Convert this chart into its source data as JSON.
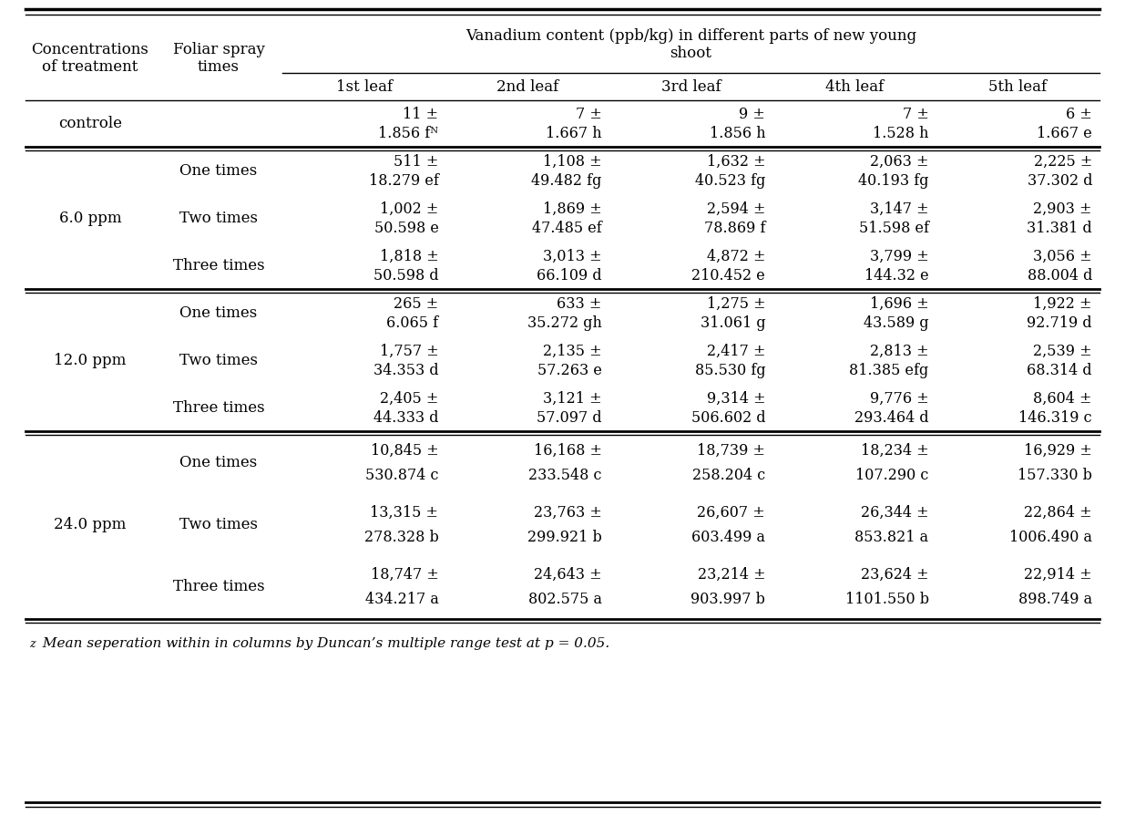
{
  "title_main": "Vanadium content (ppb/kg) in different parts of new young\nshoot",
  "leaf_headers": [
    "1st leaf",
    "2nd leaf",
    "3rd leaf",
    "4th leaf",
    "5th leaf"
  ],
  "rows": [
    {
      "conc": "controle",
      "spray": "",
      "line1": [
        "11 ±",
        "7 ±",
        "9 ±",
        "7 ±",
        "6 ±"
      ],
      "line2": [
        "1.856 fᴺ",
        "1.667 h",
        "1.856 h",
        "1.528 h",
        "1.667 e"
      ],
      "tall": false
    },
    {
      "conc": "6.0 ppm",
      "spray": "One times",
      "line1": [
        "511 ±",
        "1,108 ±",
        "1,632 ±",
        "2,063 ±",
        "2,225 ±"
      ],
      "line2": [
        "18.279 ef",
        "49.482 fg",
        "40.523 fg",
        "40.193 fg",
        "37.302 d"
      ],
      "tall": false
    },
    {
      "conc": "",
      "spray": "Two times",
      "line1": [
        "1,002 ±",
        "1,869 ±",
        "2,594 ±",
        "3,147 ±",
        "2,903 ±"
      ],
      "line2": [
        "50.598 e",
        "47.485 ef",
        "78.869 f",
        "51.598 ef",
        "31.381 d"
      ],
      "tall": false
    },
    {
      "conc": "",
      "spray": "Three times",
      "line1": [
        "1,818 ±",
        "3,013 ±",
        "4,872 ±",
        "3,799 ±",
        "3,056 ±"
      ],
      "line2": [
        "50.598 d",
        "66.109 d",
        "210.452 e",
        "144.32 e",
        "88.004 d"
      ],
      "tall": false
    },
    {
      "conc": "12.0 ppm",
      "spray": "One times",
      "line1": [
        "265 ±",
        "633 ±",
        "1,275 ±",
        "1,696 ±",
        "1,922 ±"
      ],
      "line2": [
        "6.065 f",
        "35.272 gh",
        "31.061 g",
        "43.589 g",
        "92.719 d"
      ],
      "tall": false
    },
    {
      "conc": "",
      "spray": "Two times",
      "line1": [
        "1,757 ±",
        "2,135 ±",
        "2,417 ±",
        "2,813 ±",
        "2,539 ±"
      ],
      "line2": [
        "34.353 d",
        "57.263 e",
        "85.530 fg",
        "81.385 efg",
        "68.314 d"
      ],
      "tall": false
    },
    {
      "conc": "",
      "spray": "Three times",
      "line1": [
        "2,405 ±",
        "3,121 ±",
        "9,314 ±",
        "9,776 ±",
        "8,604 ±"
      ],
      "line2": [
        "44.333 d",
        "57.097 d",
        "506.602 d",
        "293.464 d",
        "146.319 c"
      ],
      "tall": false
    },
    {
      "conc": "24.0 ppm",
      "spray": "One times",
      "line1": [
        "10,845 ±",
        "16,168 ±",
        "18,739 ±",
        "18,234 ±",
        "16,929 ±"
      ],
      "line2": [
        "530.874 c",
        "233.548 c",
        "258.204 c",
        "107.290 c",
        "157.330 b"
      ],
      "tall": true
    },
    {
      "conc": "",
      "spray": "Two times",
      "line1": [
        "13,315 ±",
        "23,763 ±",
        "26,607 ±",
        "26,344 ±",
        "22,864 ±"
      ],
      "line2": [
        "278.328 b",
        "299.921 b",
        "603.499 a",
        "853.821 a",
        "1006.490 a"
      ],
      "tall": true
    },
    {
      "conc": "",
      "spray": "Three times",
      "line1": [
        "18,747 ±",
        "24,643 ±",
        "23,214 ±",
        "23,624 ±",
        "22,914 ±"
      ],
      "line2": [
        "434.217 a",
        "802.575 a",
        "903.997 b",
        "1101.550 b",
        "898.749 a"
      ],
      "tall": true
    }
  ],
  "footnote_z": "z",
  "footnote_text": " Mean seperation within in columns by Duncan’s multiple range test at p = 0.05.",
  "conc_groups": [
    {
      "label": "controle",
      "rows": [
        0,
        0
      ]
    },
    {
      "label": "6.0 ppm",
      "rows": [
        1,
        3
      ]
    },
    {
      "label": "12.0 ppm",
      "rows": [
        4,
        6
      ]
    },
    {
      "label": "24.0 ppm",
      "rows": [
        7,
        9
      ]
    }
  ],
  "group_sep_after": [
    0,
    3,
    6
  ],
  "bg_color": "#ffffff"
}
